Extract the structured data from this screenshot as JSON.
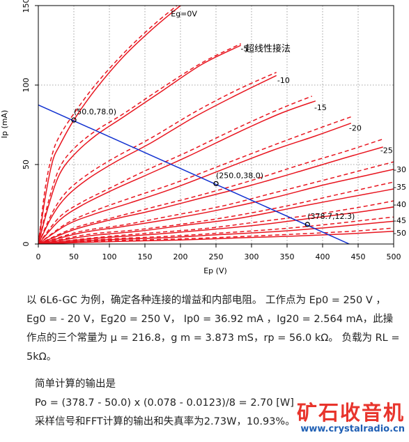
{
  "chart_data": {
    "type": "line",
    "xlabel": "Ep (V)",
    "ylabel": "Ip (mA)",
    "title": "超线性接法",
    "xlim": [
      0,
      500
    ],
    "ylim": [
      0,
      150
    ],
    "x_ticks": [
      "0",
      "50",
      "100",
      "150",
      "200",
      "250",
      "300",
      "350",
      "400",
      "450",
      "500"
    ],
    "y_ticks": [
      "0",
      "50",
      "100",
      "150"
    ],
    "grid": "dotted",
    "series": [
      {
        "name": "Eg=0V",
        "bias": 0,
        "label_at": [
          205,
          145
        ],
        "solid": [
          [
            0,
            0
          ],
          [
            10,
            30
          ],
          [
            20,
            52
          ],
          [
            30,
            62
          ],
          [
            50,
            78
          ],
          [
            80,
            97
          ],
          [
            120,
            118
          ],
          [
            160,
            135
          ],
          [
            200,
            150
          ]
        ],
        "dashed": [
          [
            0,
            0
          ],
          [
            10,
            36
          ],
          [
            20,
            57
          ],
          [
            30,
            68
          ],
          [
            50,
            82
          ],
          [
            80,
            100
          ],
          [
            120,
            120
          ],
          [
            160,
            137
          ],
          [
            195,
            150
          ]
        ]
      },
      {
        "name": "-5",
        "bias": -5,
        "label_at": [
          290,
          123
        ],
        "solid": [
          [
            0,
            0
          ],
          [
            15,
            25
          ],
          [
            30,
            44
          ],
          [
            50,
            56
          ],
          [
            80,
            68
          ],
          [
            120,
            80
          ],
          [
            170,
            95
          ],
          [
            230,
            113
          ],
          [
            285,
            125
          ]
        ],
        "dashed": [
          [
            0,
            0
          ],
          [
            15,
            28
          ],
          [
            30,
            48
          ],
          [
            50,
            60
          ],
          [
            80,
            71
          ],
          [
            120,
            82
          ],
          [
            170,
            97
          ],
          [
            230,
            114
          ],
          [
            285,
            126
          ]
        ]
      },
      {
        "name": "-10",
        "bias": -10,
        "label_at": [
          345,
          103
        ],
        "solid": [
          [
            0,
            0
          ],
          [
            20,
            18
          ],
          [
            40,
            30
          ],
          [
            70,
            41
          ],
          [
            110,
            52
          ],
          [
            160,
            64
          ],
          [
            220,
            80
          ],
          [
            280,
            94
          ],
          [
            335,
            106
          ]
        ],
        "dashed": [
          [
            0,
            0
          ],
          [
            20,
            20
          ],
          [
            40,
            33
          ],
          [
            70,
            44
          ],
          [
            110,
            55
          ],
          [
            160,
            67
          ],
          [
            220,
            83
          ],
          [
            280,
            97
          ],
          [
            335,
            108
          ]
        ]
      },
      {
        "name": "-15",
        "bias": -15,
        "label_at": [
          397,
          86
        ],
        "solid": [
          [
            0,
            0
          ],
          [
            30,
            15
          ],
          [
            60,
            24
          ],
          [
            100,
            33
          ],
          [
            150,
            43
          ],
          [
            210,
            55
          ],
          [
            280,
            70
          ],
          [
            340,
            82
          ],
          [
            390,
            90
          ]
        ],
        "dashed": [
          [
            0,
            0
          ],
          [
            30,
            17
          ],
          [
            60,
            26
          ],
          [
            100,
            35
          ],
          [
            150,
            46
          ],
          [
            210,
            58
          ],
          [
            280,
            73
          ],
          [
            340,
            85
          ],
          [
            385,
            93
          ]
        ]
      },
      {
        "name": "-20",
        "bias": -20,
        "label_at": [
          446,
          73
        ],
        "solid": [
          [
            0,
            0
          ],
          [
            40,
            12
          ],
          [
            80,
            19
          ],
          [
            130,
            26
          ],
          [
            190,
            35
          ],
          [
            260,
            47
          ],
          [
            330,
            59
          ],
          [
            390,
            68
          ],
          [
            440,
            76
          ]
        ],
        "dashed": [
          [
            0,
            0
          ],
          [
            40,
            13
          ],
          [
            80,
            21
          ],
          [
            130,
            29
          ],
          [
            190,
            38
          ],
          [
            260,
            50
          ],
          [
            330,
            62
          ],
          [
            390,
            72
          ],
          [
            440,
            80
          ]
        ]
      },
      {
        "name": "-25",
        "bias": -25,
        "label_at": [
          490,
          59
        ],
        "solid": [
          [
            0,
            0
          ],
          [
            50,
            9
          ],
          [
            100,
            15
          ],
          [
            160,
            21
          ],
          [
            230,
            29
          ],
          [
            300,
            37
          ],
          [
            370,
            46
          ],
          [
            430,
            54
          ],
          [
            485,
            61
          ]
        ],
        "dashed": [
          [
            0,
            0
          ],
          [
            50,
            10
          ],
          [
            100,
            16
          ],
          [
            160,
            23
          ],
          [
            230,
            31
          ],
          [
            300,
            40
          ],
          [
            370,
            50
          ],
          [
            430,
            58
          ],
          [
            485,
            66
          ]
        ]
      },
      {
        "name": "-30",
        "bias": -30,
        "label_at": [
          525,
          47
        ],
        "solid": [
          [
            0,
            0
          ],
          [
            60,
            7
          ],
          [
            120,
            11
          ],
          [
            190,
            16
          ],
          [
            260,
            22
          ],
          [
            330,
            29
          ],
          [
            400,
            37
          ],
          [
            460,
            43
          ],
          [
            520,
            49
          ]
        ],
        "dashed": [
          [
            0,
            0
          ],
          [
            60,
            8
          ],
          [
            120,
            12
          ],
          [
            190,
            18
          ],
          [
            260,
            24
          ],
          [
            330,
            32
          ],
          [
            400,
            40
          ],
          [
            460,
            47
          ],
          [
            520,
            54
          ]
        ]
      },
      {
        "name": "-35",
        "bias": -35,
        "label_at": [
          545,
          36
        ],
        "solid": [
          [
            0,
            0
          ],
          [
            70,
            5
          ],
          [
            140,
            8
          ],
          [
            210,
            12
          ],
          [
            280,
            16
          ],
          [
            350,
            22
          ],
          [
            420,
            28
          ],
          [
            480,
            33
          ],
          [
            540,
            38
          ]
        ],
        "dashed": [
          [
            0,
            0
          ],
          [
            70,
            6
          ],
          [
            140,
            9
          ],
          [
            210,
            13
          ],
          [
            280,
            18
          ],
          [
            350,
            24
          ],
          [
            420,
            31
          ],
          [
            480,
            37
          ],
          [
            540,
            43
          ]
        ]
      },
      {
        "name": "-40",
        "bias": -40,
        "label_at": [
          545,
          25
        ],
        "solid": [
          [
            0,
            0
          ],
          [
            80,
            3.5
          ],
          [
            160,
            6
          ],
          [
            240,
            9
          ],
          [
            310,
            12
          ],
          [
            380,
            16
          ],
          [
            450,
            20
          ],
          [
            510,
            24
          ],
          [
            545,
            26
          ]
        ],
        "dashed": [
          [
            0,
            0
          ],
          [
            80,
            4
          ],
          [
            160,
            7
          ],
          [
            240,
            10
          ],
          [
            310,
            14
          ],
          [
            380,
            18
          ],
          [
            450,
            23
          ],
          [
            510,
            28
          ],
          [
            545,
            31
          ]
        ]
      },
      {
        "name": "-45",
        "bias": -45,
        "label_at": [
          546,
          15
        ],
        "solid": [
          [
            0,
            0
          ],
          [
            90,
            2.5
          ],
          [
            180,
            4
          ],
          [
            260,
            6
          ],
          [
            340,
            8
          ],
          [
            410,
            10.5
          ],
          [
            480,
            13.5
          ],
          [
            545,
            16
          ]
        ],
        "dashed": [
          [
            0,
            0
          ],
          [
            90,
            3
          ],
          [
            180,
            4.8
          ],
          [
            260,
            7
          ],
          [
            340,
            9.5
          ],
          [
            410,
            12.5
          ],
          [
            480,
            16
          ],
          [
            545,
            19
          ]
        ]
      },
      {
        "name": "-50",
        "bias": -50,
        "label_at": [
          549,
          7
        ],
        "solid": [
          [
            0,
            0
          ],
          [
            100,
            1.5
          ],
          [
            200,
            2.5
          ],
          [
            280,
            3.8
          ],
          [
            360,
            5
          ],
          [
            440,
            6.5
          ],
          [
            500,
            8
          ],
          [
            545,
            9
          ]
        ],
        "dashed": [
          [
            0,
            0
          ],
          [
            100,
            2
          ],
          [
            200,
            3.2
          ],
          [
            280,
            4.6
          ],
          [
            360,
            6.2
          ],
          [
            440,
            8
          ],
          [
            500,
            10
          ],
          [
            545,
            11
          ]
        ]
      }
    ],
    "load_line": {
      "name": "RL = 5kΩ",
      "x": [
        0,
        437.5
      ],
      "y": [
        87.5,
        0
      ]
    },
    "operating_points": [
      {
        "x": 50.0,
        "y": 78.0,
        "label": "(50.0,78.0)"
      },
      {
        "x": 250.0,
        "y": 38.0,
        "label": "(250.0,38.0)"
      },
      {
        "x": 378.7,
        "y": 12.3,
        "label": "(378.7,12.3)"
      }
    ],
    "colors": {
      "curves": "#e8141e",
      "load_line": "#1030d0",
      "grid": "#888888"
    }
  },
  "text": {
    "p1": "以 6L6-GC 为例，确定各种连接的增益和内部电阻。 工作点为 Ep0 = 250 V ，Eg0 = - 20 V，Eg20 = 250 V， Ip0 = 36.92 mA ，Ig20 = 2.564 mA，此操作点的三个常量为 μ = 216.8，g m = 3.873 mS，rp = 56.0 kΩ。 负载为 RL = 5kΩ。",
    "p2": "简单计算的输出是",
    "p3": "Po = (378.7 - 50.0) x (0.078 - 0.0123)/8 = 2.70 [W]",
    "p4": "采样信号和FFT计算的输出和失真率为2.73W，10.93%。"
  },
  "watermark": {
    "main": "矿石收音机",
    "url": "www.crystalradio.cn"
  }
}
